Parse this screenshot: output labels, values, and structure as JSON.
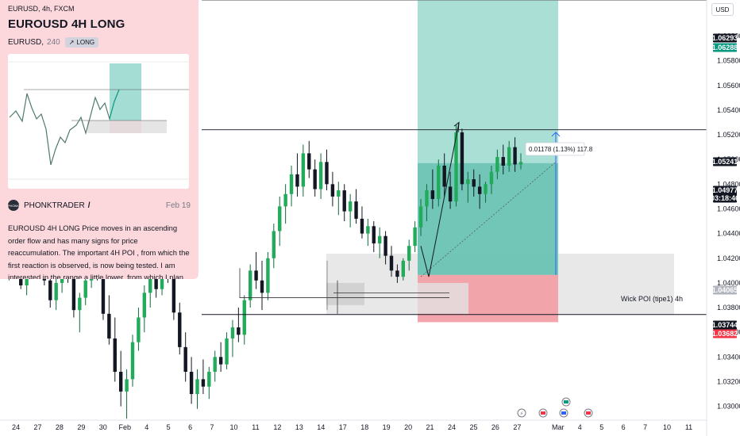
{
  "header": {
    "symbol_line": "EURUSD, 4h, FXCM",
    "currency_button": "USD"
  },
  "card": {
    "title": "EUROUSD 4H LONG",
    "symbol": "EURUSD",
    "timeframe": "240",
    "badge": "LONG",
    "author": "PHONKTRADER",
    "date": "Feb 19",
    "avatar_text": "PHONK",
    "description": "EUROUSD 4H LONG Price moves in an ascending order flow and has many signs for price reaccumulation. The important 4H POI , from which the first reaction is observed, is now being tested. I am interested in the range a little lower, from which I plan to..."
  },
  "colors": {
    "bull": "#089981",
    "bear": "#f23645",
    "target_zone": "#a4ddd3",
    "stop_zone": "#f2a0a8",
    "poi_zone": "#e6e6e6"
  },
  "chart_data": {
    "type": "candlestick",
    "price_axis": {
      "ticks": [
        "1.06000",
        "1.05800",
        "1.05600",
        "1.05400",
        "1.05200",
        "1.05000",
        "1.04800",
        "1.04600",
        "1.04400",
        "1.04200",
        "1.04000",
        "1.03800",
        "1.03600",
        "1.03400",
        "1.03200",
        "1.03000"
      ],
      "range": [
        1.0295,
        1.0637
      ]
    },
    "time_axis": [
      "24",
      "27",
      "28",
      "29",
      "30",
      "Feb",
      "4",
      "5",
      "6",
      "7",
      "10",
      "11",
      "12",
      "13",
      "14",
      "17",
      "18",
      "19",
      "20",
      "21",
      "24",
      "25",
      "26",
      "27",
      "Mar",
      "4",
      "5",
      "6",
      "7",
      "10",
      "11"
    ],
    "price_labels": [
      {
        "value": "1.06293",
        "style": "dark"
      },
      {
        "value": "1.06288",
        "style": "green"
      },
      {
        "value": "1.05241",
        "style": "dark"
      },
      {
        "value": "1.04977",
        "style": "dark"
      },
      {
        "value": "03:18:46",
        "style": "dark"
      },
      {
        "value": "1.04065",
        "style": "gray"
      },
      {
        "value": "1.03744",
        "style": "dark"
      },
      {
        "value": "1.03682",
        "style": "red"
      }
    ],
    "annotations": {
      "position_label": "0.01178 (1.13%) 117.8",
      "zone_label": "Wick POI (tipe1) 4h"
    },
    "levels": [
      1.06293,
      1.05241,
      1.03744
    ],
    "position": {
      "entry": 1.04065,
      "target": 1.06288,
      "stop": 1.03682
    },
    "poi_zone": [
      1.03744,
      1.04237
    ],
    "candles": [
      [
        1.0418,
        1.0425,
        1.0405,
        1.041
      ],
      [
        1.041,
        1.0428,
        1.0402,
        1.0422
      ],
      [
        1.0422,
        1.043,
        1.0408,
        1.0412
      ],
      [
        1.0412,
        1.042,
        1.0395,
        1.0398
      ],
      [
        1.0398,
        1.0415,
        1.039,
        1.041
      ],
      [
        1.041,
        1.0432,
        1.0405,
        1.0428
      ],
      [
        1.0428,
        1.044,
        1.0418,
        1.0422
      ],
      [
        1.0422,
        1.0426,
        1.0398,
        1.0402
      ],
      [
        1.0402,
        1.041,
        1.038,
        1.0386
      ],
      [
        1.0386,
        1.0405,
        1.0378,
        1.04
      ],
      [
        1.04,
        1.0418,
        1.0392,
        1.0412
      ],
      [
        1.0412,
        1.0425,
        1.04,
        1.0405
      ],
      [
        1.0405,
        1.0408,
        1.0372,
        1.0378
      ],
      [
        1.0378,
        1.0392,
        1.036,
        1.0388
      ],
      [
        1.0388,
        1.0408,
        1.0382,
        1.0402
      ],
      [
        1.0402,
        1.042,
        1.0396,
        1.0416
      ],
      [
        1.0416,
        1.0428,
        1.0402,
        1.0408
      ],
      [
        1.0408,
        1.0415,
        1.037,
        1.0375
      ],
      [
        1.0375,
        1.039,
        1.035,
        1.0355
      ],
      [
        1.0355,
        1.0372,
        1.032,
        1.0328
      ],
      [
        1.0328,
        1.0345,
        1.03,
        1.0312
      ],
      [
        1.0312,
        1.033,
        1.029,
        1.0322
      ],
      [
        1.0322,
        1.0358,
        1.0316,
        1.0352
      ],
      [
        1.0352,
        1.038,
        1.0345,
        1.0372
      ],
      [
        1.0372,
        1.0398,
        1.036,
        1.0392
      ],
      [
        1.0392,
        1.041,
        1.038,
        1.0404
      ],
      [
        1.0404,
        1.0412,
        1.0388,
        1.0395
      ],
      [
        1.0395,
        1.042,
        1.039,
        1.0415
      ],
      [
        1.0415,
        1.0428,
        1.04,
        1.041
      ],
      [
        1.041,
        1.0416,
        1.037,
        1.0376
      ],
      [
        1.0376,
        1.0384,
        1.0342,
        1.0348
      ],
      [
        1.0348,
        1.036,
        1.032,
        1.0328
      ],
      [
        1.0328,
        1.034,
        1.0302,
        1.031
      ],
      [
        1.031,
        1.033,
        1.0298,
        1.0322
      ],
      [
        1.0322,
        1.0338,
        1.031,
        1.0316
      ],
      [
        1.0316,
        1.0332,
        1.0306,
        1.0328
      ],
      [
        1.0328,
        1.0345,
        1.032,
        1.034
      ],
      [
        1.034,
        1.0352,
        1.0328,
        1.0334
      ],
      [
        1.0334,
        1.036,
        1.033,
        1.0355
      ],
      [
        1.0355,
        1.037,
        1.034,
        1.0364
      ],
      [
        1.0364,
        1.038,
        1.0352,
        1.0358
      ],
      [
        1.0358,
        1.039,
        1.035,
        1.0386
      ],
      [
        1.0386,
        1.0415,
        1.038,
        1.041
      ],
      [
        1.041,
        1.0425,
        1.0395,
        1.0402
      ],
      [
        1.0402,
        1.0418,
        1.0378,
        1.0392
      ],
      [
        1.0392,
        1.0425,
        1.0386,
        1.042
      ],
      [
        1.042,
        1.0448,
        1.0412,
        1.0442
      ],
      [
        1.0442,
        1.047,
        1.043,
        1.0462
      ],
      [
        1.0462,
        1.048,
        1.0448,
        1.0472
      ],
      [
        1.0472,
        1.0495,
        1.0462,
        1.0488
      ],
      [
        1.0488,
        1.0505,
        1.047,
        1.0478
      ],
      [
        1.0478,
        1.0512,
        1.047,
        1.0505
      ],
      [
        1.0505,
        1.0515,
        1.0485,
        1.0492
      ],
      [
        1.0492,
        1.05,
        1.047,
        1.0476
      ],
      [
        1.0476,
        1.0505,
        1.0468,
        1.0498
      ],
      [
        1.0498,
        1.0508,
        1.0475,
        1.048
      ],
      [
        1.048,
        1.049,
        1.0462,
        1.047
      ],
      [
        1.047,
        1.0482,
        1.0455,
        1.0475
      ],
      [
        1.0475,
        1.048,
        1.045,
        1.0458
      ],
      [
        1.0458,
        1.0472,
        1.0445,
        1.0466
      ],
      [
        1.0466,
        1.0476,
        1.0448,
        1.0452
      ],
      [
        1.0452,
        1.0462,
        1.0436,
        1.044
      ],
      [
        1.044,
        1.0452,
        1.043,
        1.0446
      ],
      [
        1.0446,
        1.045,
        1.0425,
        1.0432
      ],
      [
        1.0432,
        1.0445,
        1.042,
        1.0438
      ],
      [
        1.0438,
        1.0442,
        1.0415,
        1.0422
      ],
      [
        1.0422,
        1.043,
        1.0405,
        1.041
      ],
      [
        1.041,
        1.0415,
        1.04,
        1.0405
      ],
      [
        1.0405,
        1.042,
        1.0402,
        1.0418
      ],
      [
        1.0418,
        1.0435,
        1.041,
        1.043
      ],
      [
        1.043,
        1.045,
        1.0425,
        1.0445
      ],
      [
        1.0445,
        1.0468,
        1.0438,
        1.0462
      ],
      [
        1.0462,
        1.048,
        1.045,
        1.0475
      ],
      [
        1.0475,
        1.0492,
        1.046,
        1.0468
      ],
      [
        1.0468,
        1.05,
        1.0462,
        1.0495
      ],
      [
        1.0495,
        1.0505,
        1.047,
        1.0478
      ],
      [
        1.0478,
        1.049,
        1.046,
        1.0466
      ],
      [
        1.0466,
        1.0528,
        1.0462,
        1.0522
      ],
      [
        1.0522,
        1.0525,
        1.0475,
        1.048
      ],
      [
        1.048,
        1.049,
        1.0465,
        1.0484
      ],
      [
        1.0484,
        1.0492,
        1.047,
        1.0478
      ],
      [
        1.0478,
        1.0488,
        1.046,
        1.0472
      ],
      [
        1.0472,
        1.0482,
        1.0465,
        1.048
      ],
      [
        1.048,
        1.0495,
        1.0472,
        1.049
      ],
      [
        1.049,
        1.0508,
        1.0484,
        1.0502
      ],
      [
        1.0502,
        1.0512,
        1.0488,
        1.0495
      ],
      [
        1.0495,
        1.0515,
        1.049,
        1.051
      ],
      [
        1.051,
        1.0518,
        1.049,
        1.0496
      ],
      [
        1.0496,
        1.0505,
        1.0492,
        1.0498
      ]
    ],
    "events": [
      "lightning-icon",
      "us-flag-icon",
      "eu-flag-icon",
      "us-flag-icon"
    ]
  }
}
